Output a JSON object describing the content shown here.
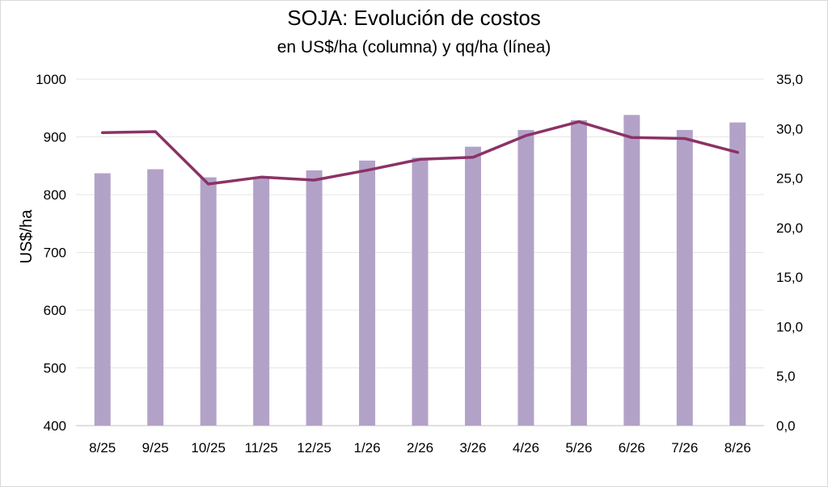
{
  "chart_data": {
    "type": "bar",
    "title": "SOJA: Evolución de costos",
    "subtitle": "en US$/ha (columna) y qq/ha (línea)",
    "ylabel": "US$/ha",
    "y2label": "",
    "categories": [
      "8/25",
      "9/25",
      "10/25",
      "11/25",
      "12/25",
      "1/26",
      "2/26",
      "3/26",
      "4/26",
      "5/26",
      "6/26",
      "7/26",
      "8/26"
    ],
    "series": [
      {
        "type": "bar",
        "axis": "left",
        "values": [
          837,
          844,
          830,
          830,
          842,
          859,
          864,
          883,
          912,
          929,
          938,
          912,
          925
        ]
      },
      {
        "type": "line",
        "axis": "right",
        "values": [
          29.6,
          29.7,
          24.4,
          25.1,
          24.8,
          25.8,
          26.9,
          27.1,
          29.3,
          30.7,
          29.1,
          29.0,
          27.6
        ]
      }
    ],
    "ylim": [
      400,
      1000
    ],
    "yticks": [
      "400",
      "500",
      "600",
      "700",
      "800",
      "900",
      "1000"
    ],
    "y2lim": [
      0,
      35
    ],
    "y2ticks": [
      "0,0",
      "5,0",
      "10,0",
      "15,0",
      "20,0",
      "25,0",
      "30,0",
      "35,0"
    ],
    "grid": true,
    "legend": "none",
    "colors": {
      "bar": "#b3a2c8",
      "line": "#8b3266",
      "grid": "#e6e6e6"
    }
  }
}
